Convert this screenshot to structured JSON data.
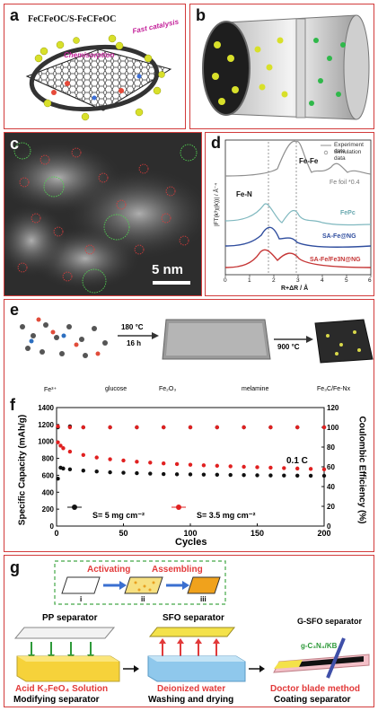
{
  "panel_a": {
    "label": "a",
    "title": "FeCFeOC/S-FeCFeOC",
    "chemisorption": "Chemisorption",
    "fast_catalysis": "Fast catalysis"
  },
  "panel_b": {
    "label": "b"
  },
  "panel_c": {
    "label": "c",
    "scalebar": "5 nm"
  },
  "panel_d": {
    "label": "d",
    "legend_exp": "Experiment data",
    "legend_sim": "Simulation data",
    "feed_label": "Fe-Fe",
    "fen_label": "Fe-N",
    "series_labels": [
      "Fe foil *0.4",
      "FePc",
      "SA-Fe@NG",
      "SA-Fe/Fe3N@NG"
    ],
    "ylabel": "|FT(k³χ(k))| / Å⁻⁴",
    "xlabel": "R+ΔR / Å",
    "xticks": [
      "0",
      "1",
      "2",
      "3",
      "4",
      "5",
      "6"
    ]
  },
  "panel_e": {
    "label": "e",
    "step1_temp": "180 °C",
    "step1_time": "16 h",
    "step2_temp": "900 °C",
    "legend": [
      "Fe³⁺",
      "glucose",
      "Fe₂O₃",
      "melamine",
      "Fe₃C/Fe-Nx"
    ]
  },
  "panel_f": {
    "label": "f",
    "chart_data": {
      "type": "scatter",
      "xlabel": "Cycles",
      "ylabel": "Specific Capacity (mAh/g)",
      "y2label": "Coulombic Efficiency (%)",
      "xlim": [
        0,
        200
      ],
      "ylim": [
        0,
        1400
      ],
      "y2lim": [
        0,
        120
      ],
      "xticks": [
        0,
        50,
        100,
        150,
        200
      ],
      "yticks": [
        0,
        200,
        400,
        600,
        800,
        1000,
        1200,
        1400
      ],
      "y2ticks": [
        0,
        20,
        40,
        60,
        80,
        100,
        120
      ],
      "rate_label": "0.1 C",
      "series": [
        {
          "name": "S= 5 mg cm⁻²",
          "color": "#111111",
          "capacity": [
            [
              1,
              560
            ],
            [
              3,
              690
            ],
            [
              5,
              680
            ],
            [
              10,
              670
            ],
            [
              20,
              655
            ],
            [
              30,
              645
            ],
            [
              40,
              635
            ],
            [
              50,
              630
            ],
            [
              60,
              625
            ],
            [
              70,
              620
            ],
            [
              80,
              615
            ],
            [
              90,
              612
            ],
            [
              100,
              610
            ],
            [
              110,
              608
            ],
            [
              120,
              606
            ],
            [
              130,
              604
            ],
            [
              140,
              602
            ],
            [
              150,
              600
            ],
            [
              160,
              598
            ],
            [
              170,
              597
            ],
            [
              180,
              596
            ],
            [
              190,
              595
            ],
            [
              200,
              594
            ]
          ],
          "efficiency": [
            [
              1,
              100
            ],
            [
              10,
              101
            ],
            [
              20,
              100
            ],
            [
              40,
              100
            ],
            [
              60,
              100
            ],
            [
              80,
              100
            ],
            [
              100,
              100
            ],
            [
              120,
              100
            ],
            [
              140,
              100
            ],
            [
              160,
              100
            ],
            [
              180,
              100
            ],
            [
              200,
              100
            ]
          ]
        },
        {
          "name": "S= 3.5 mg cm⁻²",
          "color": "#e02020",
          "capacity": [
            [
              1,
              990
            ],
            [
              3,
              950
            ],
            [
              5,
              920
            ],
            [
              10,
              880
            ],
            [
              20,
              840
            ],
            [
              30,
              810
            ],
            [
              40,
              790
            ],
            [
              50,
              775
            ],
            [
              60,
              760
            ],
            [
              70,
              750
            ],
            [
              80,
              740
            ],
            [
              90,
              732
            ],
            [
              100,
              725
            ],
            [
              110,
              718
            ],
            [
              120,
              712
            ],
            [
              130,
              706
            ],
            [
              140,
              700
            ],
            [
              150,
              695
            ],
            [
              160,
              690
            ],
            [
              170,
              685
            ],
            [
              180,
              680
            ],
            [
              190,
              675
            ],
            [
              200,
              670
            ]
          ],
          "efficiency": [
            [
              1,
              101
            ],
            [
              10,
              100
            ],
            [
              20,
              100
            ],
            [
              40,
              100
            ],
            [
              60,
              100
            ],
            [
              80,
              100
            ],
            [
              100,
              100
            ],
            [
              120,
              100
            ],
            [
              140,
              100
            ],
            [
              160,
              100
            ],
            [
              180,
              100
            ],
            [
              200,
              100
            ]
          ]
        }
      ]
    }
  },
  "panel_g": {
    "label": "g",
    "activating": "Activating",
    "assembling": "Assembling",
    "step_i": "i",
    "step_ii": "ii",
    "step_iii": "iii",
    "pp_separator": "PP separator",
    "sfo_separator": "SFO separator",
    "gsfo_separator": "G-SFO separator",
    "gc3n4_label": "g-C₃N₄/KB",
    "solution_label": "Acid K₂FeO₄ Solution",
    "modifying": "Modifying separator",
    "water_label": "Deionized water",
    "washing": "Washing and drying",
    "doctor_blade": "Doctor blade method",
    "coating": "Coating separator"
  }
}
